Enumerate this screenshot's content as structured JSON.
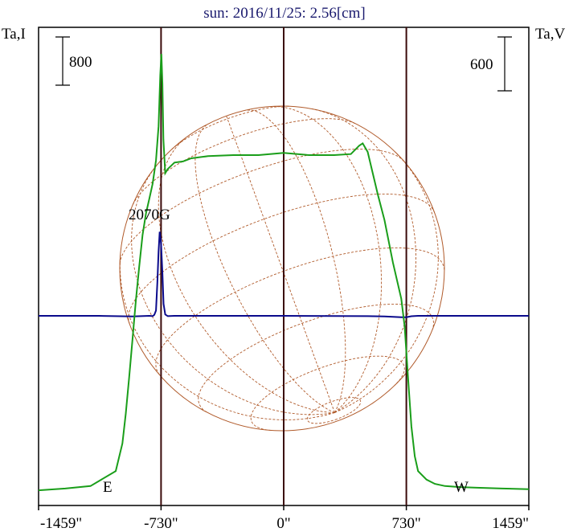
{
  "chart_data": {
    "type": "line",
    "title": "sun: 2016/11/25: 2.56[cm]",
    "left_axis_label": "Ta,I",
    "right_axis_label": "Ta,V",
    "left_scale_bar": "800",
    "right_scale_bar": "600",
    "x_tick_labels": [
      "-1459\"",
      "-730\"",
      "0\"",
      "730\"",
      "1459\""
    ],
    "x_ticks": [
      -1459,
      -730,
      0,
      730,
      1459
    ],
    "xlim": [
      -1459,
      1459
    ],
    "limb_positions": [
      -730,
      730
    ],
    "left_limb_label": "E",
    "right_limb_label": "W",
    "annotation": "2070G",
    "colors": {
      "intensity": "#1a9e1a",
      "polarization": "#0a0a8c",
      "grid": "#b05a2a",
      "frame": "#000000",
      "limb_lines": "#3a0a0a",
      "title": "#1a1a6e"
    },
    "series": [
      {
        "name": "Ta,I",
        "x": [
          -1459,
          -1300,
          -1150,
          -1000,
          -960,
          -940,
          -920,
          -900,
          -880,
          -860,
          -840,
          -820,
          -800,
          -780,
          -760,
          -745,
          -735,
          -728,
          -722,
          -716,
          -705,
          -690,
          -650,
          -600,
          -550,
          -450,
          -300,
          -150,
          0,
          150,
          300,
          400,
          450,
          470,
          500,
          530,
          560,
          600,
          650,
          700,
          720,
          740,
          760,
          780,
          800,
          850,
          900,
          960,
          1050,
          1150,
          1300,
          1459
        ],
        "y": [
          30,
          38,
          50,
          120,
          250,
          390,
          560,
          740,
          920,
          1080,
          1230,
          1330,
          1400,
          1470,
          1580,
          1740,
          1980,
          2080,
          1940,
          1680,
          1520,
          1540,
          1570,
          1575,
          1590,
          1600,
          1605,
          1605,
          1615,
          1605,
          1605,
          1610,
          1650,
          1660,
          1620,
          1520,
          1420,
          1300,
          1100,
          930,
          800,
          560,
          330,
          190,
          120,
          80,
          60,
          50,
          45,
          42,
          38,
          35
        ]
      },
      {
        "name": "Ta,V",
        "x": [
          -1459,
          -1100,
          -900,
          -800,
          -780,
          -770,
          -760,
          -752,
          -745,
          -738,
          -730,
          -722,
          -715,
          -705,
          -690,
          -650,
          -500,
          -300,
          0,
          300,
          500,
          600,
          650,
          700,
          730,
          760,
          800,
          1000,
          1200,
          1459
        ],
        "y": [
          0,
          0,
          -10,
          0,
          -5,
          15,
          80,
          500,
          960,
          1260,
          1080,
          640,
          180,
          20,
          -5,
          0,
          0,
          0,
          0,
          -2,
          -5,
          -10,
          -14,
          -20,
          -20,
          -6,
          0,
          0,
          0,
          0
        ]
      }
    ]
  }
}
